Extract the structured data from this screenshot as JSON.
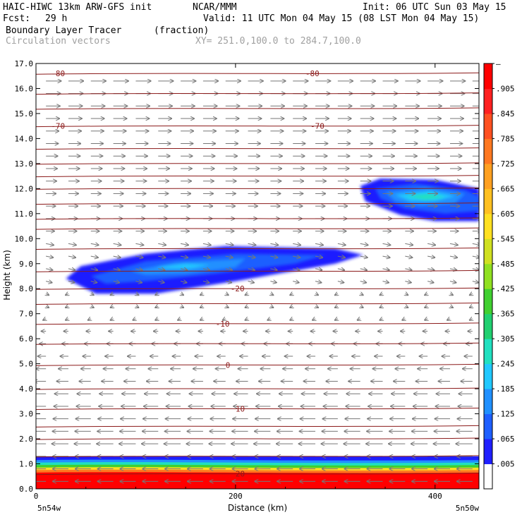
{
  "header": {
    "model_title": "HAIC-HIWC 13km ARW-GFS init",
    "org": "NCAR/MMM",
    "init": "Init: 06 UTC Sun 03 May 15",
    "fcst_label": "Fcst:",
    "fcst_value": "29 h",
    "valid": "Valid: 11 UTC Mon 04 May 15 (08 LST Mon 04 May 15)",
    "field_name": "Boundary Layer Tracer",
    "field_units": "(fraction)",
    "overlay_name": "Circulation vectors",
    "xy_range": "XY= 251.0,100.0 to 284.7,100.0"
  },
  "chart_data": {
    "type": "heatmap",
    "xlabel": "Distance (km)",
    "ylabel": "Height (km)",
    "xlim": [
      0,
      444
    ],
    "ylim": [
      0.0,
      17.0
    ],
    "x_ticks": [
      0,
      200,
      400
    ],
    "x_tick_labels": [
      "0",
      "200",
      "400"
    ],
    "y_ticks": [
      0.0,
      1.0,
      2.0,
      3.0,
      4.0,
      5.0,
      6.0,
      7.0,
      8.0,
      9.0,
      10.0,
      11.0,
      12.0,
      13.0,
      14.0,
      15.0,
      16.0,
      17.0
    ],
    "y_tick_labels": [
      "0.0",
      "1.0",
      "2.0",
      "3.0",
      "4.0",
      "5.0",
      "6.0",
      "7.0",
      "8.0",
      "9.0",
      "10.0",
      "11.0",
      "12.0",
      "13.0",
      "14.0",
      "15.0",
      "16.0",
      "17.0"
    ],
    "x_end_labels": [
      "5n54w",
      "5n50w"
    ],
    "colorbar": {
      "levels": [
        0.005,
        0.065,
        0.125,
        0.185,
        0.245,
        0.305,
        0.365,
        0.425,
        0.485,
        0.545,
        0.605,
        0.665,
        0.725,
        0.785,
        0.845,
        0.905
      ],
      "labels": [
        "–",
        ".905",
        ".845",
        ".785",
        ".725",
        ".665",
        ".605",
        ".545",
        ".485",
        ".425",
        ".365",
        ".305",
        ".245",
        ".185",
        ".125",
        ".065",
        ".005"
      ],
      "colors": [
        "#ffffff",
        "#1f1fff",
        "#1e5fff",
        "#2090ff",
        "#20c8ff",
        "#20e0c0",
        "#20d070",
        "#40d030",
        "#90e020",
        "#d0e020",
        "#ffe020",
        "#ffc020",
        "#ffa020",
        "#ff7820",
        "#ff5020",
        "#ff2020",
        "#ff0000"
      ]
    },
    "temperature_contours": [
      {
        "value": 20,
        "label": "20",
        "height_km": 0.6
      },
      {
        "value": 10,
        "label": "10",
        "height_km": 3.2
      },
      {
        "value": 0,
        "label": "0",
        "height_km": 4.95
      },
      {
        "value": -10,
        "label": "-10",
        "height_km": 6.6
      },
      {
        "value": -20,
        "label": "-20",
        "height_km": 8.0
      },
      {
        "value": -70,
        "label": "-70",
        "height_km": 14.5
      },
      {
        "value": -80,
        "label": "-80",
        "height_km": 16.6
      }
    ],
    "contour_line_heights_km": [
      0.6,
      1.3,
      2.0,
      2.5,
      3.2,
      4.0,
      4.95,
      5.8,
      6.6,
      7.4,
      8.0,
      8.7,
      9.6,
      10.4,
      10.8,
      11.4,
      12.0,
      12.5,
      13.0,
      13.6,
      14.5,
      15.2,
      15.8,
      16.6
    ],
    "tracer_features": [
      {
        "name": "boundary-layer",
        "x_range": [
          0,
          444
        ],
        "height_range": [
          0.0,
          1.3
        ],
        "max_value": 0.905
      },
      {
        "name": "mid-level-plume",
        "x_range": [
          30,
          330
        ],
        "height_range": [
          7.7,
          9.7
        ],
        "max_value": 0.2
      },
      {
        "name": "upper-level-plume",
        "x_range": [
          325,
          444
        ],
        "height_range": [
          10.6,
          12.4
        ],
        "max_value": 0.35
      }
    ]
  }
}
